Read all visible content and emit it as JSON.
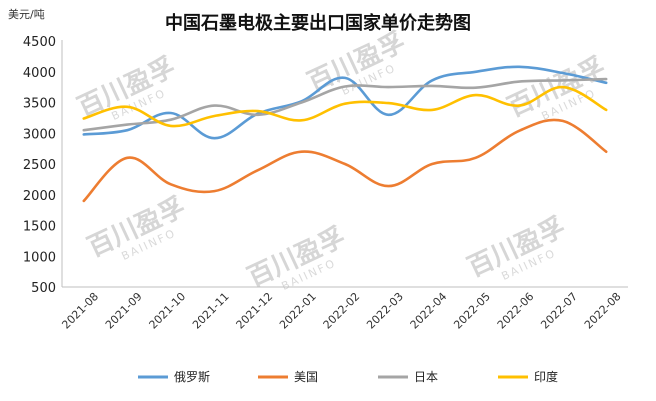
{
  "chart_data": {
    "type": "line",
    "title": "中国石墨电极主要出口国家单价走势图",
    "unit_label": "美元/吨",
    "xlabel": "",
    "ylabel": "",
    "categories": [
      "2021-08",
      "2021-09",
      "2021-10",
      "2021-11",
      "2021-12",
      "2022-01",
      "2022-02",
      "2022-03",
      "2022-04",
      "2022-05",
      "2022-06",
      "2022-07",
      "2022-08"
    ],
    "ylim": [
      500,
      4500
    ],
    "yticks": [
      500,
      1000,
      1500,
      2000,
      2500,
      3000,
      3500,
      4000,
      4500
    ],
    "grid": false,
    "legend_position": "bottom",
    "series": [
      {
        "name": "俄罗斯",
        "color": "#5b9bd5",
        "values": [
          2980,
          3050,
          3330,
          2920,
          3320,
          3520,
          3900,
          3300,
          3860,
          4000,
          4080,
          3980,
          3820
        ]
      },
      {
        "name": "美国",
        "color": "#ed7d31",
        "values": [
          1900,
          2600,
          2170,
          2060,
          2400,
          2700,
          2500,
          2140,
          2500,
          2600,
          3040,
          3200,
          2700
        ]
      },
      {
        "name": "日本",
        "color": "#a5a5a5",
        "values": [
          3050,
          3140,
          3220,
          3450,
          3300,
          3500,
          3760,
          3750,
          3770,
          3740,
          3840,
          3860,
          3880
        ]
      },
      {
        "name": "印度",
        "color": "#ffc000",
        "values": [
          3240,
          3430,
          3120,
          3280,
          3360,
          3210,
          3480,
          3490,
          3380,
          3620,
          3450,
          3750,
          3380
        ]
      }
    ]
  },
  "watermark": {
    "text": "百川盈孚",
    "subtext": "BAIINFO"
  }
}
